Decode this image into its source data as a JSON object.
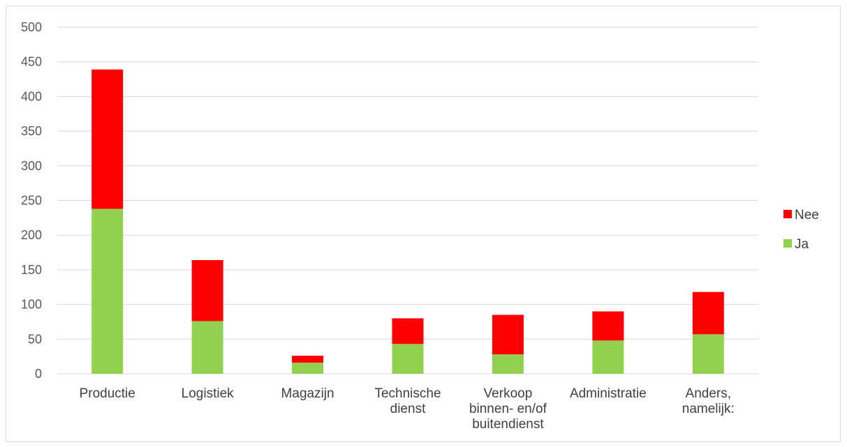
{
  "chart_data": {
    "type": "bar",
    "stacked": true,
    "title": "",
    "xlabel": "",
    "ylabel": "",
    "ylim": [
      0,
      500
    ],
    "yticks": [
      0,
      50,
      100,
      150,
      200,
      250,
      300,
      350,
      400,
      450,
      500
    ],
    "grid": true,
    "legend_position": "right",
    "categories": [
      [
        "Productie"
      ],
      [
        "Logistiek"
      ],
      [
        "Magazijn"
      ],
      [
        "Technische",
        "dienst"
      ],
      [
        "Verkoop",
        "binnen- en/of",
        "buitendienst"
      ],
      [
        "Administratie"
      ],
      [
        "Anders,",
        "namelijk:"
      ]
    ],
    "series": [
      {
        "name": "Ja",
        "color": "#92d050",
        "values": [
          238,
          76,
          16,
          43,
          28,
          48,
          57
        ]
      },
      {
        "name": "Nee",
        "color": "#ff0000",
        "values": [
          201,
          88,
          10,
          37,
          57,
          42,
          61
        ]
      }
    ],
    "legend_order": [
      "Nee",
      "Ja"
    ]
  }
}
